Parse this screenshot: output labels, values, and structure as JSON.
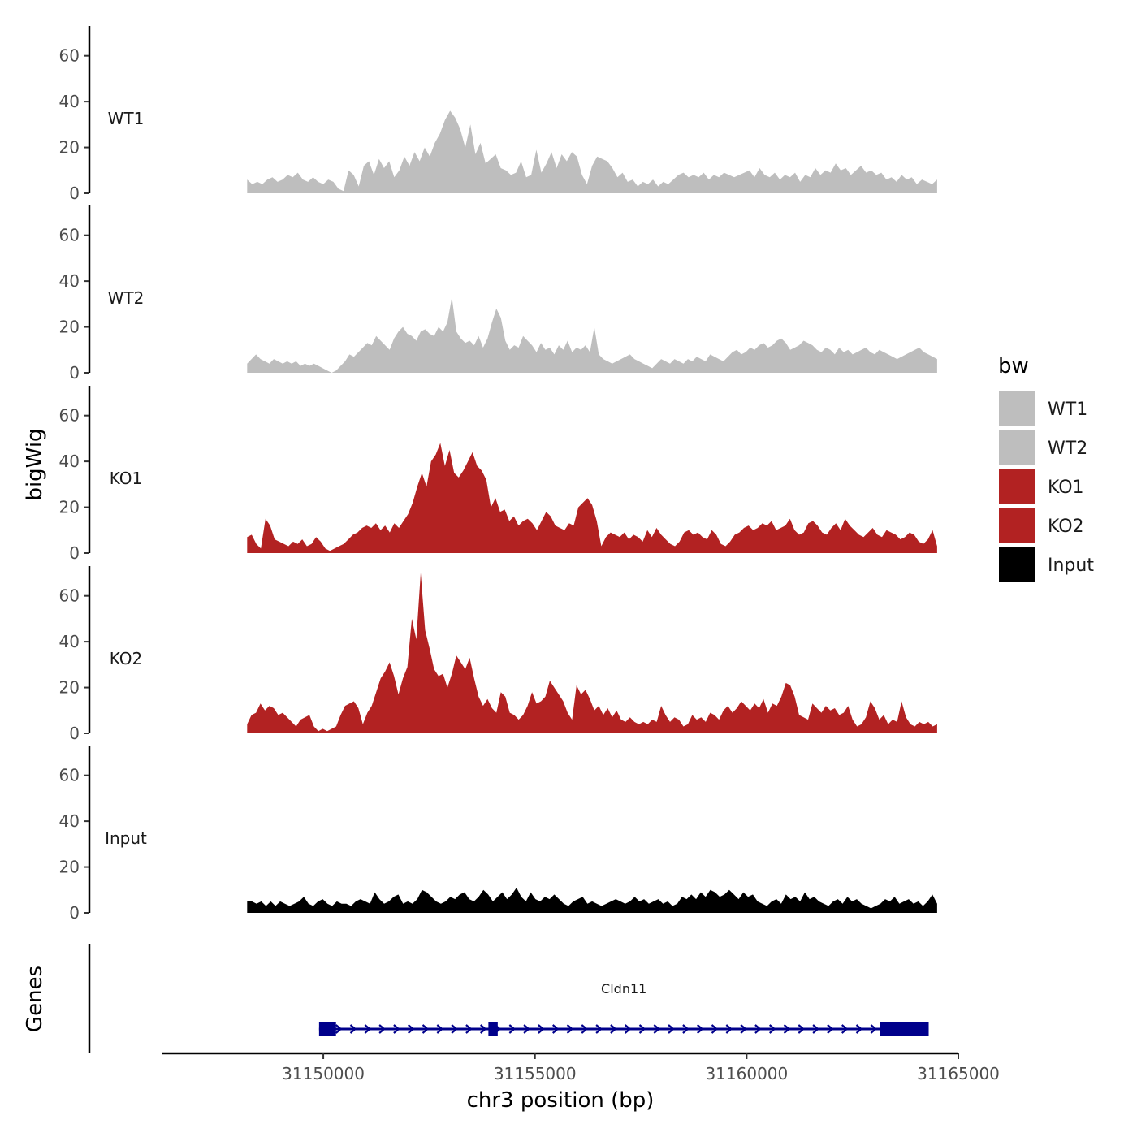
{
  "chart_data": {
    "type": "area",
    "title": "",
    "ylabel": "bigWig",
    "genes_label": "Genes",
    "xlabel": "chr3 position (bp)",
    "xlim": [
      31146200,
      31165000
    ],
    "x_ticks": [
      31150000,
      31155000,
      31160000,
      31165000
    ],
    "x_tick_labels": [
      "31150000",
      "31155000",
      "31160000",
      "31165000"
    ],
    "ylim": [
      0,
      73
    ],
    "y_ticks": [
      0,
      20,
      40,
      60
    ],
    "y_tick_labels": [
      "0",
      "20",
      "40",
      "60"
    ],
    "track_x_range": [
      31148200,
      31164500
    ],
    "legend": {
      "title": "bw",
      "position": "right",
      "items": [
        {
          "label": "WT1",
          "color": "#bebebe"
        },
        {
          "label": "WT2",
          "color": "#bebebe"
        },
        {
          "label": "KO1",
          "color": "#b22222"
        },
        {
          "label": "KO2",
          "color": "#b22222"
        },
        {
          "label": "Input",
          "color": "#000000"
        }
      ]
    },
    "series": [
      {
        "name": "WT1",
        "color": "#bebebe",
        "values": [
          6,
          4,
          5,
          4,
          6,
          7,
          5,
          6,
          8,
          7,
          9,
          6,
          5,
          7,
          5,
          4,
          6,
          5,
          2,
          1,
          10,
          8,
          3,
          12,
          14,
          8,
          15,
          11,
          14,
          7,
          10,
          16,
          12,
          18,
          14,
          20,
          16,
          22,
          26,
          32,
          36,
          33,
          28,
          20,
          30,
          17,
          22,
          13,
          15,
          17,
          11,
          10,
          8,
          9,
          14,
          7,
          8,
          19,
          9,
          13,
          18,
          11,
          17,
          14,
          18,
          16,
          8,
          4,
          12,
          16,
          15,
          14,
          11,
          7,
          9,
          5,
          6,
          3,
          5,
          4,
          6,
          3,
          5,
          4,
          6,
          8,
          9,
          7,
          8,
          7,
          9,
          6,
          8,
          7,
          9,
          8,
          7,
          8,
          9,
          10,
          7,
          11,
          8,
          7,
          9,
          6,
          8,
          7,
          9,
          5,
          8,
          7,
          11,
          8,
          10,
          9,
          13,
          10,
          11,
          8,
          10,
          12,
          9,
          10,
          8,
          9,
          6,
          7,
          5,
          8,
          6,
          7,
          4,
          6,
          5,
          4,
          6
        ]
      },
      {
        "name": "WT2",
        "color": "#bebebe",
        "values": [
          4,
          6,
          8,
          6,
          5,
          4,
          6,
          5,
          4,
          5,
          4,
          5,
          3,
          4,
          3,
          4,
          3,
          2,
          1,
          0,
          1,
          3,
          5,
          8,
          7,
          9,
          11,
          13,
          12,
          16,
          14,
          12,
          10,
          15,
          18,
          20,
          17,
          16,
          14,
          18,
          19,
          17,
          16,
          20,
          18,
          22,
          33,
          18,
          15,
          13,
          14,
          12,
          16,
          11,
          15,
          22,
          28,
          24,
          14,
          10,
          12,
          11,
          16,
          14,
          12,
          9,
          13,
          10,
          11,
          8,
          12,
          10,
          14,
          9,
          11,
          10,
          12,
          9,
          20,
          8,
          6,
          5,
          4,
          5,
          6,
          7,
          8,
          6,
          5,
          4,
          3,
          2,
          4,
          6,
          5,
          4,
          6,
          5,
          4,
          6,
          5,
          7,
          6,
          5,
          8,
          7,
          6,
          5,
          7,
          9,
          10,
          8,
          9,
          11,
          10,
          12,
          13,
          11,
          12,
          14,
          15,
          13,
          10,
          11,
          12,
          14,
          13,
          12,
          10,
          9,
          11,
          10,
          8,
          11,
          9,
          10,
          8,
          9,
          10,
          11,
          9,
          8,
          10,
          9,
          8,
          7,
          6,
          7,
          8,
          9,
          10,
          11,
          9,
          8,
          7,
          6
        ]
      },
      {
        "name": "KO1",
        "color": "#b22222",
        "values": [
          7,
          8,
          4,
          2,
          15,
          12,
          6,
          5,
          4,
          3,
          5,
          4,
          6,
          3,
          4,
          7,
          5,
          2,
          1,
          2,
          3,
          4,
          6,
          8,
          9,
          11,
          12,
          11,
          13,
          10,
          12,
          9,
          13,
          11,
          14,
          17,
          22,
          29,
          35,
          29,
          40,
          43,
          48,
          38,
          45,
          35,
          33,
          36,
          40,
          44,
          38,
          36,
          32,
          20,
          24,
          18,
          19,
          14,
          16,
          12,
          14,
          15,
          13,
          10,
          14,
          18,
          16,
          12,
          11,
          10,
          13,
          12,
          20,
          22,
          24,
          21,
          14,
          3,
          7,
          9,
          8,
          7,
          9,
          6,
          8,
          7,
          5,
          10,
          7,
          11,
          8,
          6,
          4,
          3,
          5,
          9,
          10,
          8,
          9,
          7,
          6,
          10,
          8,
          4,
          3,
          5,
          8,
          9,
          11,
          12,
          10,
          11,
          13,
          12,
          14,
          10,
          11,
          12,
          15,
          10,
          8,
          9,
          13,
          14,
          12,
          9,
          8,
          11,
          13,
          10,
          15,
          12,
          10,
          8,
          7,
          9,
          11,
          8,
          7,
          10,
          9,
          8,
          6,
          7,
          9,
          8,
          5,
          4,
          6,
          10,
          3
        ]
      },
      {
        "name": "KO2",
        "color": "#b22222",
        "values": [
          4,
          8,
          9,
          13,
          10,
          12,
          11,
          8,
          9,
          7,
          5,
          3,
          6,
          7,
          8,
          3,
          1,
          2,
          1,
          2,
          3,
          8,
          12,
          13,
          14,
          11,
          4,
          9,
          12,
          18,
          24,
          27,
          31,
          25,
          17,
          24,
          29,
          50,
          41,
          70,
          45,
          37,
          28,
          25,
          26,
          20,
          26,
          34,
          31,
          28,
          33,
          24,
          16,
          12,
          15,
          11,
          9,
          18,
          16,
          9,
          8,
          6,
          8,
          12,
          18,
          13,
          14,
          16,
          23,
          20,
          17,
          14,
          9,
          6,
          21,
          17,
          19,
          15,
          10,
          12,
          8,
          11,
          7,
          10,
          6,
          5,
          7,
          5,
          4,
          5,
          4,
          6,
          5,
          12,
          8,
          5,
          7,
          6,
          3,
          4,
          8,
          6,
          7,
          5,
          9,
          8,
          6,
          10,
          12,
          9,
          11,
          14,
          12,
          10,
          13,
          11,
          15,
          9,
          13,
          12,
          16,
          22,
          21,
          16,
          8,
          7,
          6,
          13,
          11,
          9,
          12,
          10,
          11,
          8,
          9,
          12,
          6,
          3,
          4,
          7,
          14,
          11,
          6,
          8,
          4,
          6,
          5,
          14,
          7,
          4,
          3,
          5,
          4,
          5,
          3,
          4
        ]
      },
      {
        "name": "Input",
        "color": "#000000",
        "values": [
          5,
          5,
          4,
          5,
          3,
          5,
          3,
          5,
          4,
          3,
          4,
          5,
          7,
          4,
          3,
          5,
          6,
          4,
          3,
          5,
          4,
          4,
          3,
          5,
          6,
          5,
          4,
          9,
          6,
          4,
          5,
          7,
          8,
          4,
          5,
          4,
          6,
          10,
          9,
          7,
          5,
          4,
          5,
          7,
          6,
          8,
          9,
          6,
          5,
          7,
          10,
          8,
          5,
          7,
          9,
          6,
          8,
          11,
          7,
          5,
          9,
          6,
          5,
          7,
          6,
          8,
          6,
          4,
          3,
          5,
          6,
          7,
          4,
          5,
          4,
          3,
          4,
          5,
          6,
          5,
          4,
          5,
          7,
          5,
          6,
          4,
          5,
          6,
          4,
          5,
          3,
          4,
          7,
          6,
          8,
          6,
          9,
          7,
          10,
          9,
          7,
          8,
          10,
          8,
          6,
          9,
          7,
          8,
          5,
          4,
          3,
          5,
          6,
          4,
          8,
          6,
          7,
          5,
          9,
          6,
          7,
          5,
          4,
          3,
          5,
          6,
          4,
          7,
          5,
          6,
          4,
          3,
          2,
          3,
          4,
          6,
          5,
          7,
          4,
          5,
          6,
          4,
          5,
          3,
          5,
          8,
          4
        ]
      }
    ],
    "gene": {
      "name": "Cldn11",
      "start": 31149900,
      "end": 31164300,
      "strand": "+",
      "color": "#00008b",
      "exons": [
        [
          31149900,
          31150300
        ],
        [
          31153900,
          31154120
        ],
        [
          31163150,
          31164300
        ]
      ]
    }
  }
}
